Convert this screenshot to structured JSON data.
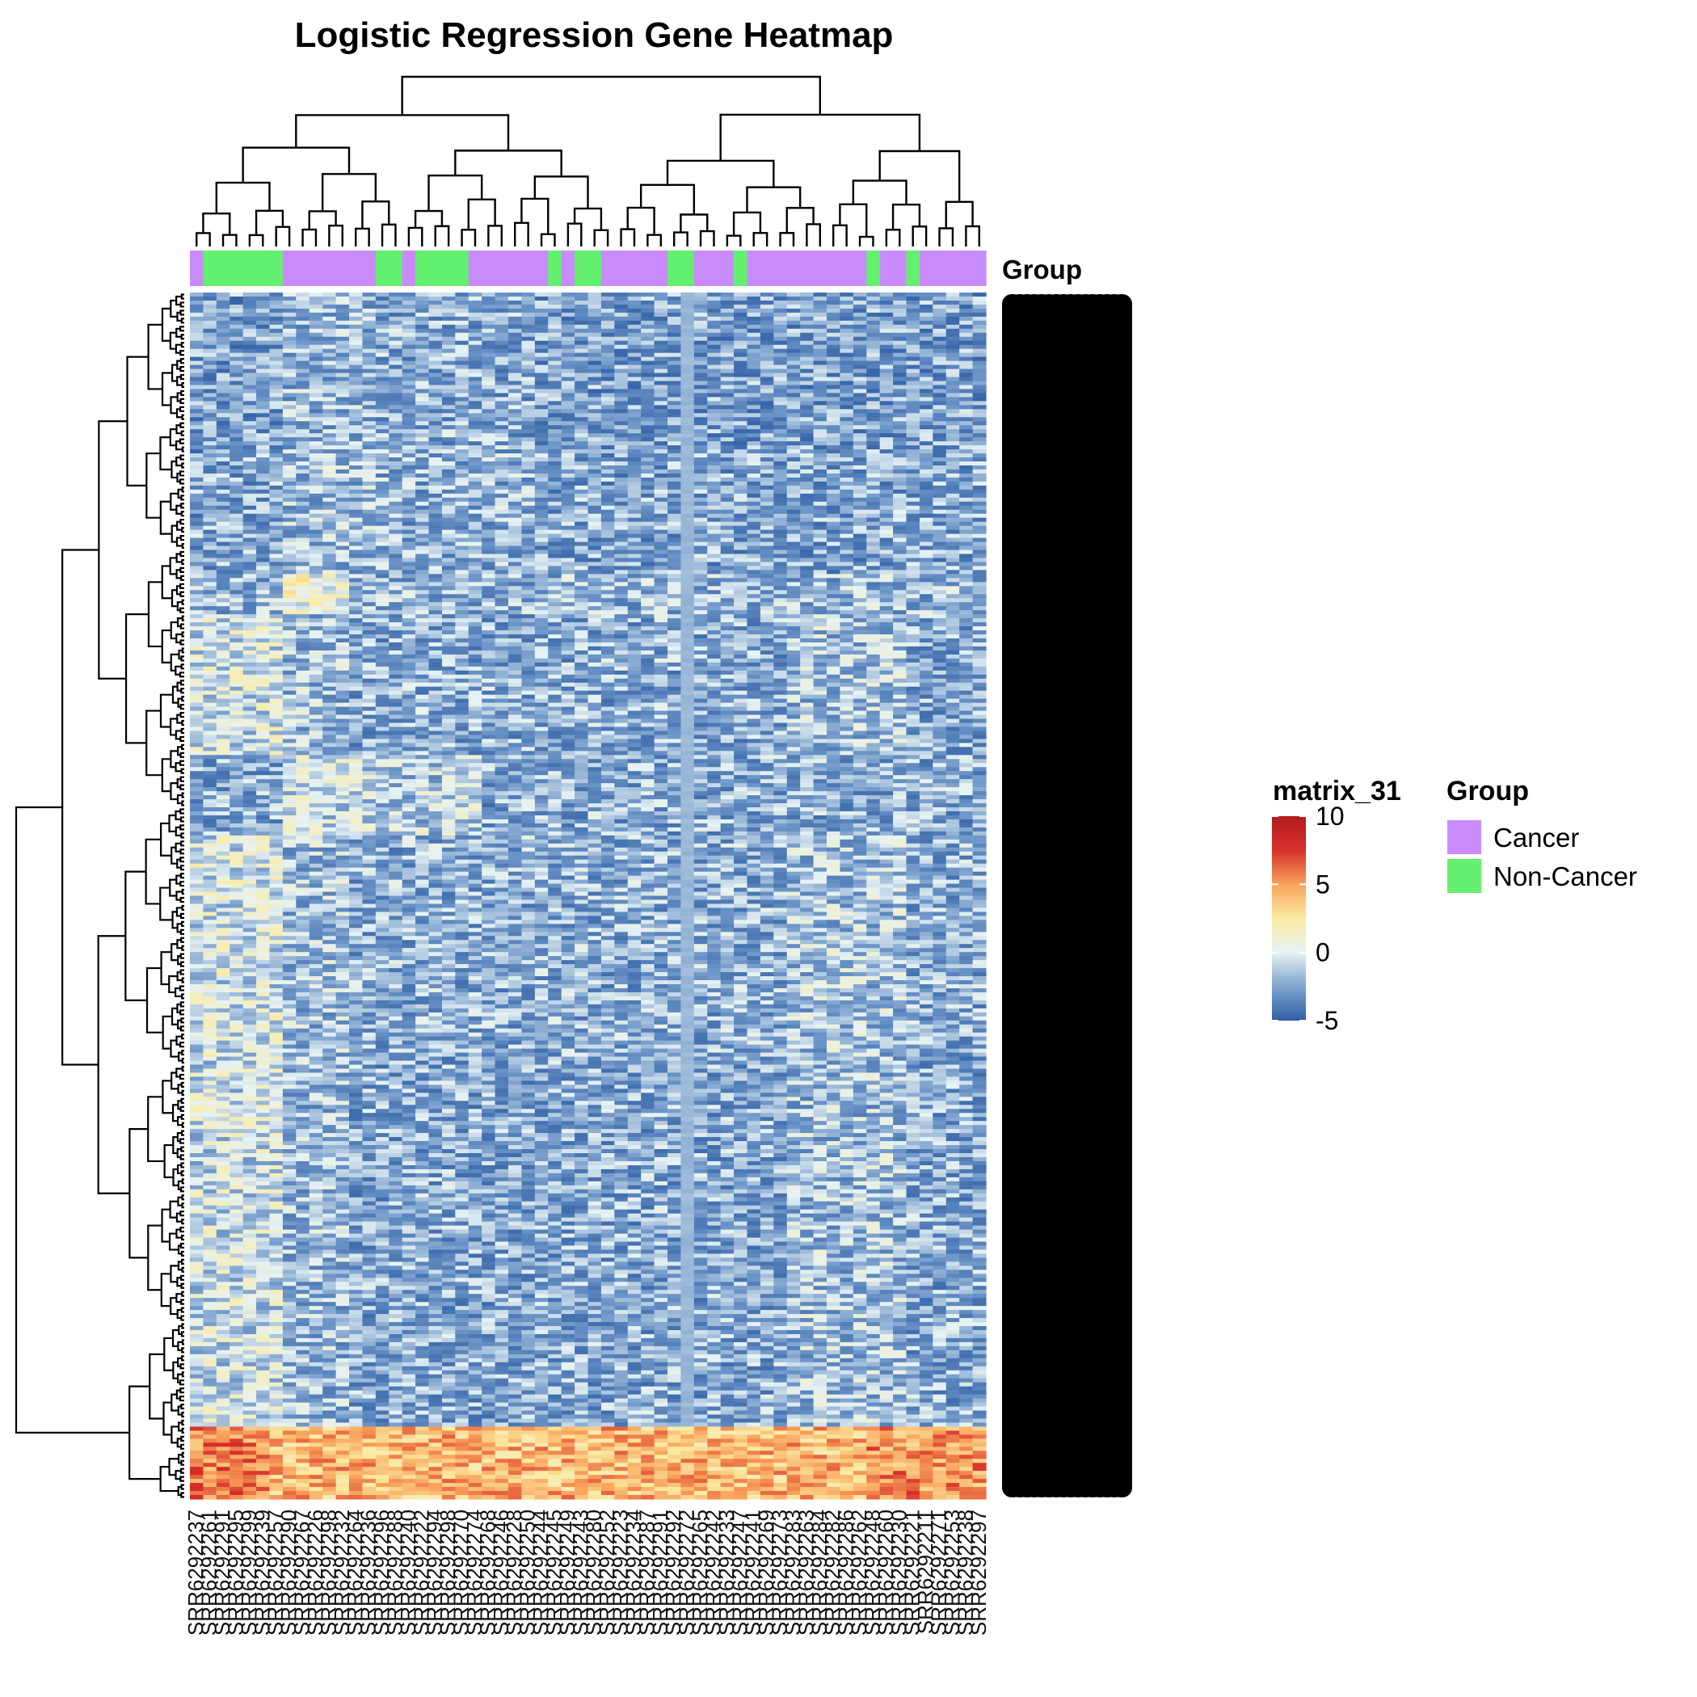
{
  "chart_data": {
    "type": "heatmap",
    "title": "Logistic Regression Gene Heatmap",
    "color_legend": {
      "title": "matrix_31",
      "ticks": [
        10,
        5,
        0,
        -5
      ],
      "range": [
        -5,
        10
      ],
      "colors": [
        "#2f5ea3",
        "#7fa5cf",
        "#e6f2f3",
        "#fbeba3",
        "#f9a25b",
        "#d7302a",
        "#b41b1f"
      ]
    },
    "group_legend": {
      "title": "Group",
      "items": [
        {
          "label": "Cancer",
          "color": "#c98bfb"
        },
        {
          "label": "Non-Cancer",
          "color": "#64f06f"
        }
      ]
    },
    "annotation": {
      "name": "Group",
      "column_groups": [
        "Cancer",
        "Non-Cancer",
        "Non-Cancer",
        "Non-Cancer",
        "Non-Cancer",
        "Non-Cancer",
        "Non-Cancer",
        "Cancer",
        "Cancer",
        "Cancer",
        "Cancer",
        "Cancer",
        "Cancer",
        "Cancer",
        "Non-Cancer",
        "Non-Cancer",
        "Cancer",
        "Non-Cancer",
        "Non-Cancer",
        "Non-Cancer",
        "Non-Cancer",
        "Cancer",
        "Cancer",
        "Cancer",
        "Cancer",
        "Cancer",
        "Cancer",
        "Non-Cancer",
        "Cancer",
        "Non-Cancer",
        "Non-Cancer",
        "Cancer",
        "Cancer",
        "Cancer",
        "Cancer",
        "Cancer",
        "Non-Cancer",
        "Non-Cancer",
        "Cancer",
        "Cancer",
        "Cancer",
        "Non-Cancer",
        "Cancer",
        "Cancer",
        "Cancer",
        "Cancer",
        "Cancer",
        "Cancer",
        "Cancer",
        "Cancer",
        "Cancer",
        "Non-Cancer",
        "Cancer",
        "Cancer",
        "Non-Cancer",
        "Cancer",
        "Cancer",
        "Cancer",
        "Cancer",
        "Cancer"
      ]
    },
    "columns": [
      "SRR6292237",
      "SRR6292261",
      "SRR6292291",
      "SRR6292295",
      "SRR6292299",
      "SRR6292239",
      "SRR6292257",
      "SRR6292290",
      "SRR6292267",
      "SRR6292226",
      "SRR6292298",
      "SRR6292232",
      "SRR6292264",
      "SRR6292236",
      "SRR6292296",
      "SRR6292288",
      "SRR6292240",
      "SRR6292222",
      "SRR6292294",
      "SRR6292298",
      "SRR6292270",
      "SRR6292274",
      "SRR6292268",
      "SRR6292246",
      "SRR6292228",
      "SRR6292250",
      "SRR6292244",
      "SRR6292245",
      "SRR6292249",
      "SRR6292243",
      "SRR6292280",
      "SRR6292252",
      "SRR6292223",
      "SRR6292234",
      "SRR6292287",
      "SRR6292291",
      "SRR6292292",
      "SRR6292272",
      "SRR6292265",
      "SRR6292242",
      "SRR6292233",
      "SRR6292247",
      "SRR6292241",
      "SRR6292269",
      "SRR6292273",
      "SRR6292283",
      "SRR6292263",
      "SRR6292284",
      "SRR6292282",
      "SRR6292286",
      "SRR6292262",
      "SRR6292248",
      "SRR6292260",
      "SRR6292230",
      "SRR6292221",
      "SRR6292211",
      "SRR6292271",
      "SRR6292253",
      "SRR6292238",
      "SRR6292297"
    ],
    "n_rows": 300,
    "row_labels": "ENSG… (dense, overlapping gene IDs)",
    "row_cluster_pattern": [
      {
        "from": 0,
        "to": 40,
        "offset": -2.4,
        "col_shift": "early_mid_high"
      },
      {
        "from": 40,
        "to": 70,
        "offset": -2.2,
        "col_shift": "early_mid_high"
      },
      {
        "from": 70,
        "to": 80,
        "offset": -1.6,
        "col_shift": "block2_high"
      },
      {
        "from": 80,
        "to": 115,
        "offset": -2.0,
        "col_shift": "first_block_high"
      },
      {
        "from": 115,
        "to": 135,
        "offset": -2.0,
        "col_shift": "mid_high"
      },
      {
        "from": 135,
        "to": 190,
        "offset": -1.9,
        "col_shift": "first_block_high"
      },
      {
        "from": 190,
        "to": 282,
        "offset": -2.1,
        "col_shift": "first_block_high"
      },
      {
        "from": 282,
        "to": 300,
        "offset": 4.2,
        "col_shift": "hot_rows"
      }
    ]
  }
}
